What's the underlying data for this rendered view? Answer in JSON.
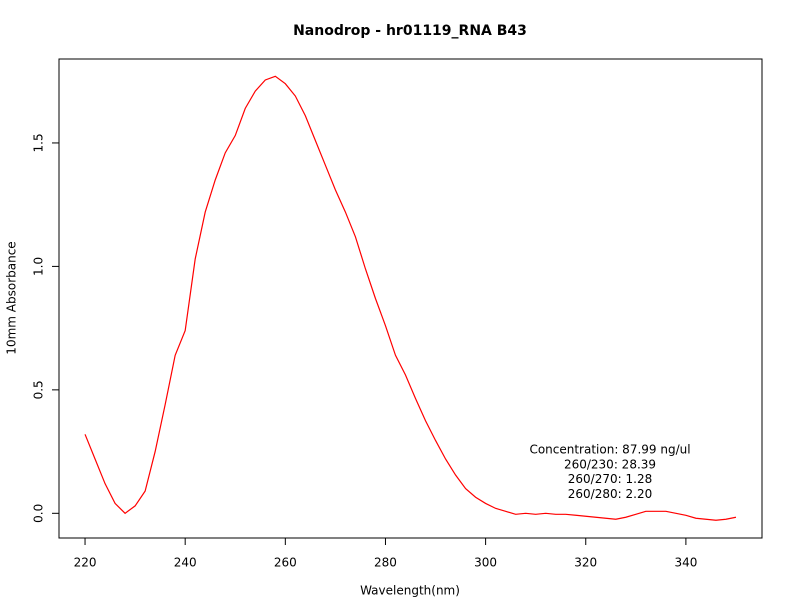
{
  "chart_data": {
    "type": "line",
    "title": "Nanodrop - hr01119_RNA B43",
    "xlabel": "Wavelength(nm)",
    "ylabel": "10mm Absorbance",
    "x": [
      220,
      222,
      224,
      226,
      228,
      230,
      232,
      234,
      236,
      238,
      240,
      242,
      244,
      246,
      248,
      250,
      252,
      254,
      256,
      258,
      260,
      262,
      264,
      266,
      268,
      270,
      272,
      274,
      276,
      278,
      280,
      282,
      284,
      286,
      288,
      290,
      292,
      294,
      296,
      298,
      300,
      302,
      304,
      306,
      308,
      310,
      312,
      314,
      316,
      318,
      320,
      322,
      324,
      326,
      328,
      330,
      332,
      334,
      336,
      338,
      340,
      342,
      344,
      346,
      348,
      350
    ],
    "values": [
      0.32,
      0.22,
      0.12,
      0.04,
      0.0,
      0.03,
      0.09,
      0.25,
      0.44,
      0.64,
      0.74,
      1.03,
      1.22,
      1.35,
      1.46,
      1.53,
      1.64,
      1.71,
      1.755,
      1.77,
      1.74,
      1.69,
      1.61,
      1.51,
      1.41,
      1.31,
      1.22,
      1.12,
      0.99,
      0.87,
      0.76,
      0.64,
      0.56,
      0.465,
      0.375,
      0.295,
      0.22,
      0.155,
      0.1,
      0.065,
      0.04,
      0.02,
      0.008,
      -0.004,
      0.0,
      -0.004,
      0.0,
      -0.004,
      -0.004,
      -0.008,
      -0.012,
      -0.016,
      -0.02,
      -0.024,
      -0.016,
      -0.004,
      0.008,
      0.008,
      0.008,
      0.0,
      -0.008,
      -0.02,
      -0.024,
      -0.028,
      -0.024,
      -0.016
    ],
    "color": "#ff0000",
    "xlim": [
      214.8,
      355.2
    ],
    "ylim": [
      -0.1,
      1.84
    ],
    "xticks": [
      220,
      240,
      260,
      280,
      300,
      320,
      340
    ],
    "yticks": [
      {
        "value": 0,
        "label": "0.0"
      },
      0.5,
      {
        "value": 1,
        "label": "1.0"
      },
      1.5
    ],
    "annotations": [
      "Concentration: 87.99 ng/ul",
      "260/230: 28.39",
      "260/270: 1.28",
      "260/280: 2.20"
    ]
  }
}
